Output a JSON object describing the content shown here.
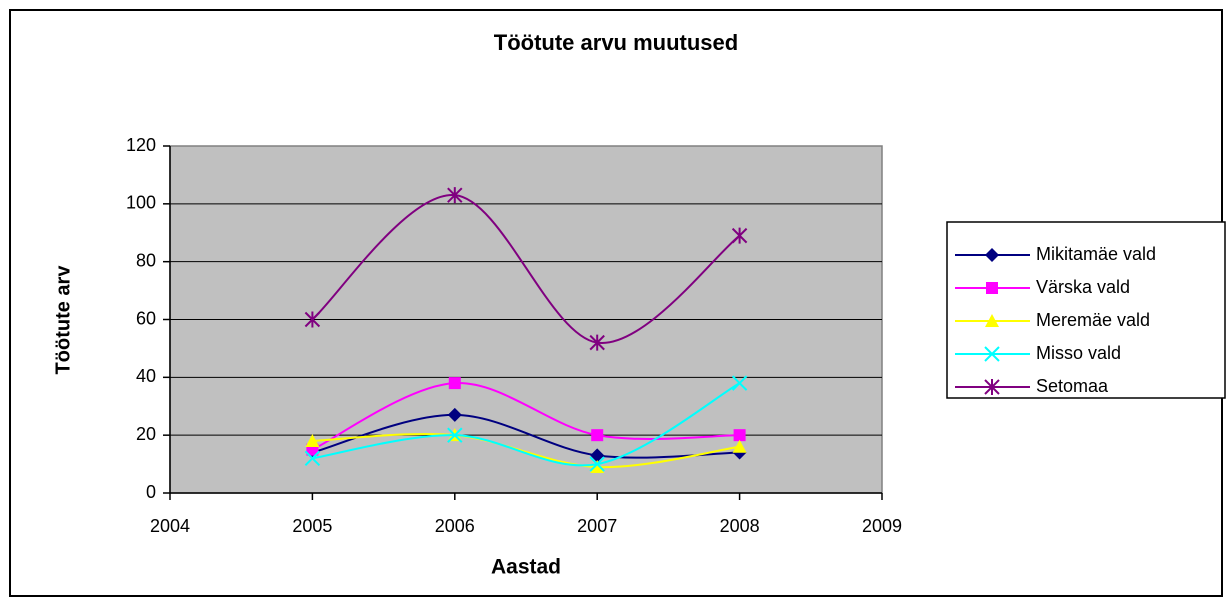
{
  "chart_data": {
    "type": "line",
    "title": "Töötute arvu muutused",
    "xlabel": "Aastad",
    "ylabel": "Töötute arv",
    "x": [
      2005,
      2006,
      2007,
      2008
    ],
    "series": [
      {
        "name": "Mikitamäe vald",
        "color": "#000080",
        "marker": "diamond",
        "values": [
          14,
          27,
          13,
          14
        ]
      },
      {
        "name": "Värska vald",
        "color": "#ff00ff",
        "marker": "square",
        "values": [
          15,
          38,
          20,
          20
        ]
      },
      {
        "name": "Meremäe vald",
        "color": "#ffff00",
        "marker": "triangle",
        "values": [
          18,
          20,
          9,
          16
        ]
      },
      {
        "name": "Misso vald",
        "color": "#00ffff",
        "marker": "x",
        "values": [
          12,
          20,
          10,
          38
        ]
      },
      {
        "name": "Setomaa",
        "color": "#800080",
        "marker": "star",
        "values": [
          60,
          103,
          52,
          89
        ]
      }
    ],
    "xlim": [
      2004,
      2009
    ],
    "xticks": [
      2004,
      2005,
      2006,
      2007,
      2008,
      2009
    ],
    "ylim": [
      0,
      120
    ],
    "yticks": [
      0,
      20,
      40,
      60,
      80,
      100,
      120
    ],
    "grid": true,
    "smooth": true,
    "legend": "right"
  }
}
